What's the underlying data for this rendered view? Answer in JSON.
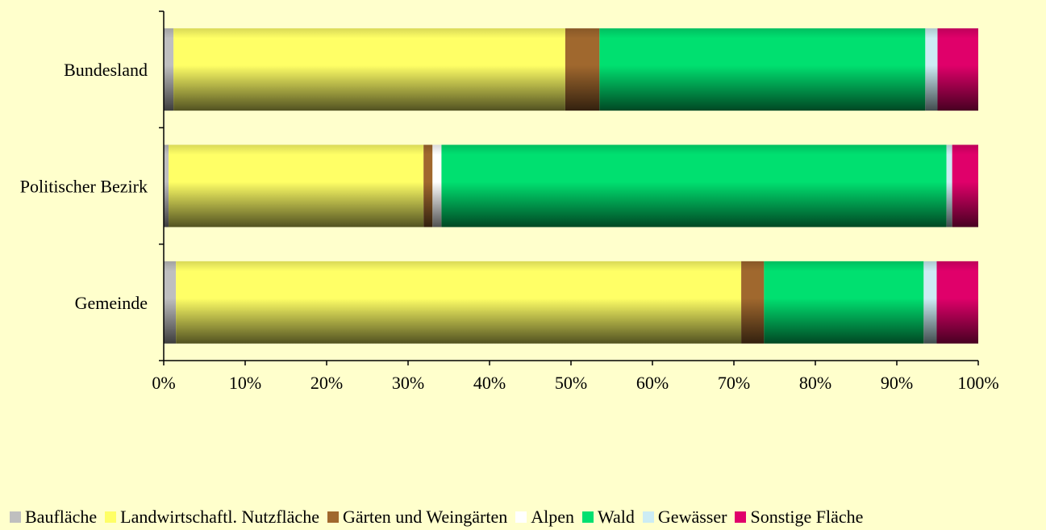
{
  "chart_data": {
    "type": "bar",
    "orientation": "horizontal",
    "stacked": true,
    "percent": true,
    "categories": [
      "Bundesland",
      "Politischer Bezirk",
      "Gemeinde"
    ],
    "series": [
      {
        "name": "Baufläche",
        "color": "#bfbfbf",
        "values": [
          1.2,
          0.6,
          1.5
        ]
      },
      {
        "name": "Landwirtschaftl. Nutzfläche",
        "color": "#ffff66",
        "values": [
          48.1,
          31.3,
          69.4
        ]
      },
      {
        "name": "Gärten und Weingärten",
        "color": "#a0682e",
        "values": [
          4.2,
          1.1,
          2.8
        ]
      },
      {
        "name": "Alpen",
        "color": "#ffffff",
        "values": [
          0.0,
          1.1,
          0.0
        ]
      },
      {
        "name": "Wald",
        "color": "#00e070",
        "values": [
          40.0,
          62.0,
          19.6
        ]
      },
      {
        "name": "Gewässer",
        "color": "#ccecf4",
        "values": [
          1.5,
          0.7,
          1.6
        ]
      },
      {
        "name": "Sonstige Fläche",
        "color": "#e0006a",
        "values": [
          5.0,
          3.2,
          5.1
        ]
      }
    ],
    "x_ticks": [
      "0%",
      "10%",
      "20%",
      "30%",
      "40%",
      "50%",
      "60%",
      "70%",
      "80%",
      "90%",
      "100%"
    ],
    "xlim": [
      0,
      100
    ],
    "grid": false,
    "legend": "bottom"
  }
}
